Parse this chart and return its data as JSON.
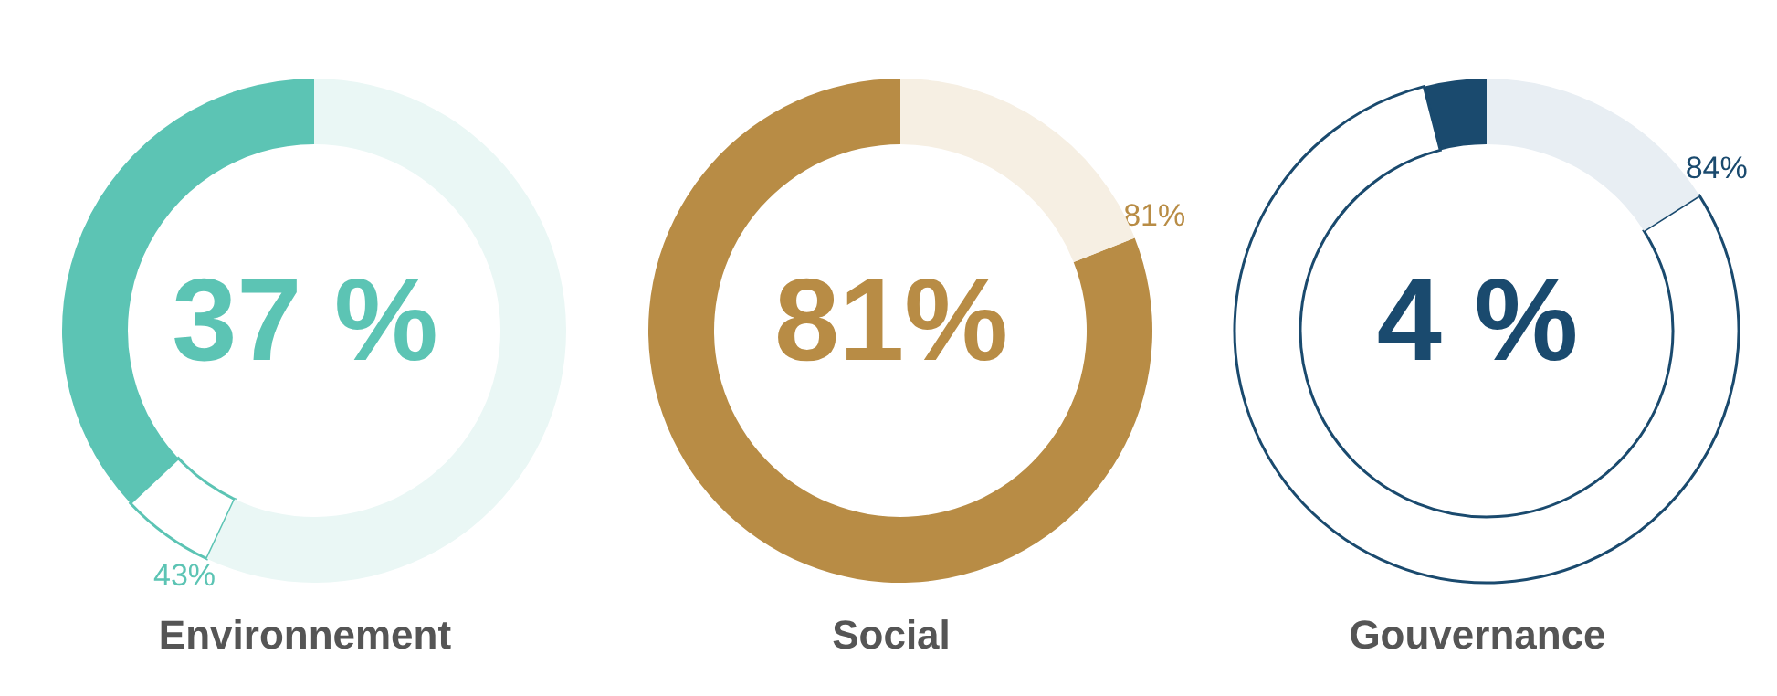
{
  "chart_data": [
    {
      "type": "donut",
      "title": "Environnement",
      "categories": [
        null,
        null,
        null
      ],
      "values": [
        37,
        6,
        57
      ],
      "color": "#5cc4b4",
      "colors": [
        "#5cc4b4",
        "#ffffff",
        "#eaf7f5"
      ],
      "annotations": [
        "37 %",
        "43%"
      ]
    },
    {
      "type": "donut",
      "title": "Social",
      "categories": [
        null,
        null
      ],
      "values": [
        81,
        19
      ],
      "color": "#b88c45",
      "colors": [
        "#b88c45",
        "#f6efe3"
      ],
      "annotations": [
        "81%",
        "81%"
      ]
    },
    {
      "type": "donut",
      "title": "Gouvernance",
      "categories": [
        null,
        null,
        null
      ],
      "values": [
        4,
        80,
        16
      ],
      "color": "#1a4a6e",
      "colors": [
        "#1a4a6e",
        "#ffffff",
        "#e8eef3"
      ],
      "annotations": [
        "4 %",
        "84%"
      ]
    }
  ]
}
